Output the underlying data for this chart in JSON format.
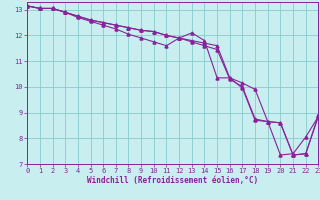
{
  "xlabel": "Windchill (Refroidissement éolien,°C)",
  "bg_color": "#c8eef0",
  "grid_color": "#88cccc",
  "line_color": "#882299",
  "xmin": 0,
  "xmax": 23,
  "ymin": 7,
  "ymax": 13.3,
  "yticks": [
    7,
    8,
    9,
    10,
    11,
    12,
    13
  ],
  "line1_x": [
    0,
    1,
    2,
    3,
    4,
    5,
    6,
    7,
    8,
    9,
    10,
    11,
    12,
    13,
    14,
    15,
    16,
    17,
    18,
    19,
    20,
    21,
    22,
    23
  ],
  "line1_y": [
    13.15,
    13.05,
    13.05,
    12.9,
    12.75,
    12.6,
    12.5,
    12.4,
    12.3,
    12.2,
    12.15,
    12.0,
    11.9,
    11.8,
    11.7,
    11.6,
    10.35,
    10.15,
    9.9,
    8.65,
    8.6,
    7.35,
    7.4,
    8.85
  ],
  "line2_x": [
    0,
    1,
    2,
    3,
    4,
    5,
    6,
    7,
    8,
    9,
    10,
    11,
    12,
    13,
    14,
    15,
    16,
    17,
    18,
    19,
    20,
    21,
    22,
    23
  ],
  "line2_y": [
    13.15,
    13.05,
    13.05,
    12.9,
    12.75,
    12.6,
    12.5,
    12.4,
    12.3,
    12.2,
    12.15,
    12.0,
    11.9,
    11.75,
    11.6,
    11.45,
    10.3,
    10.0,
    8.75,
    8.65,
    7.35,
    7.4,
    8.05,
    8.85
  ],
  "line3_x": [
    0,
    1,
    2,
    3,
    4,
    5,
    6,
    7,
    8,
    9,
    10,
    11,
    12,
    13,
    14,
    15,
    16,
    17,
    18,
    19,
    20,
    21,
    22,
    23
  ],
  "line3_y": [
    13.15,
    13.05,
    13.05,
    12.9,
    12.7,
    12.55,
    12.4,
    12.25,
    12.05,
    11.9,
    11.75,
    11.6,
    11.9,
    12.1,
    11.8,
    10.35,
    10.35,
    9.95,
    8.7,
    8.65,
    8.6,
    7.35,
    7.4,
    8.9
  ]
}
